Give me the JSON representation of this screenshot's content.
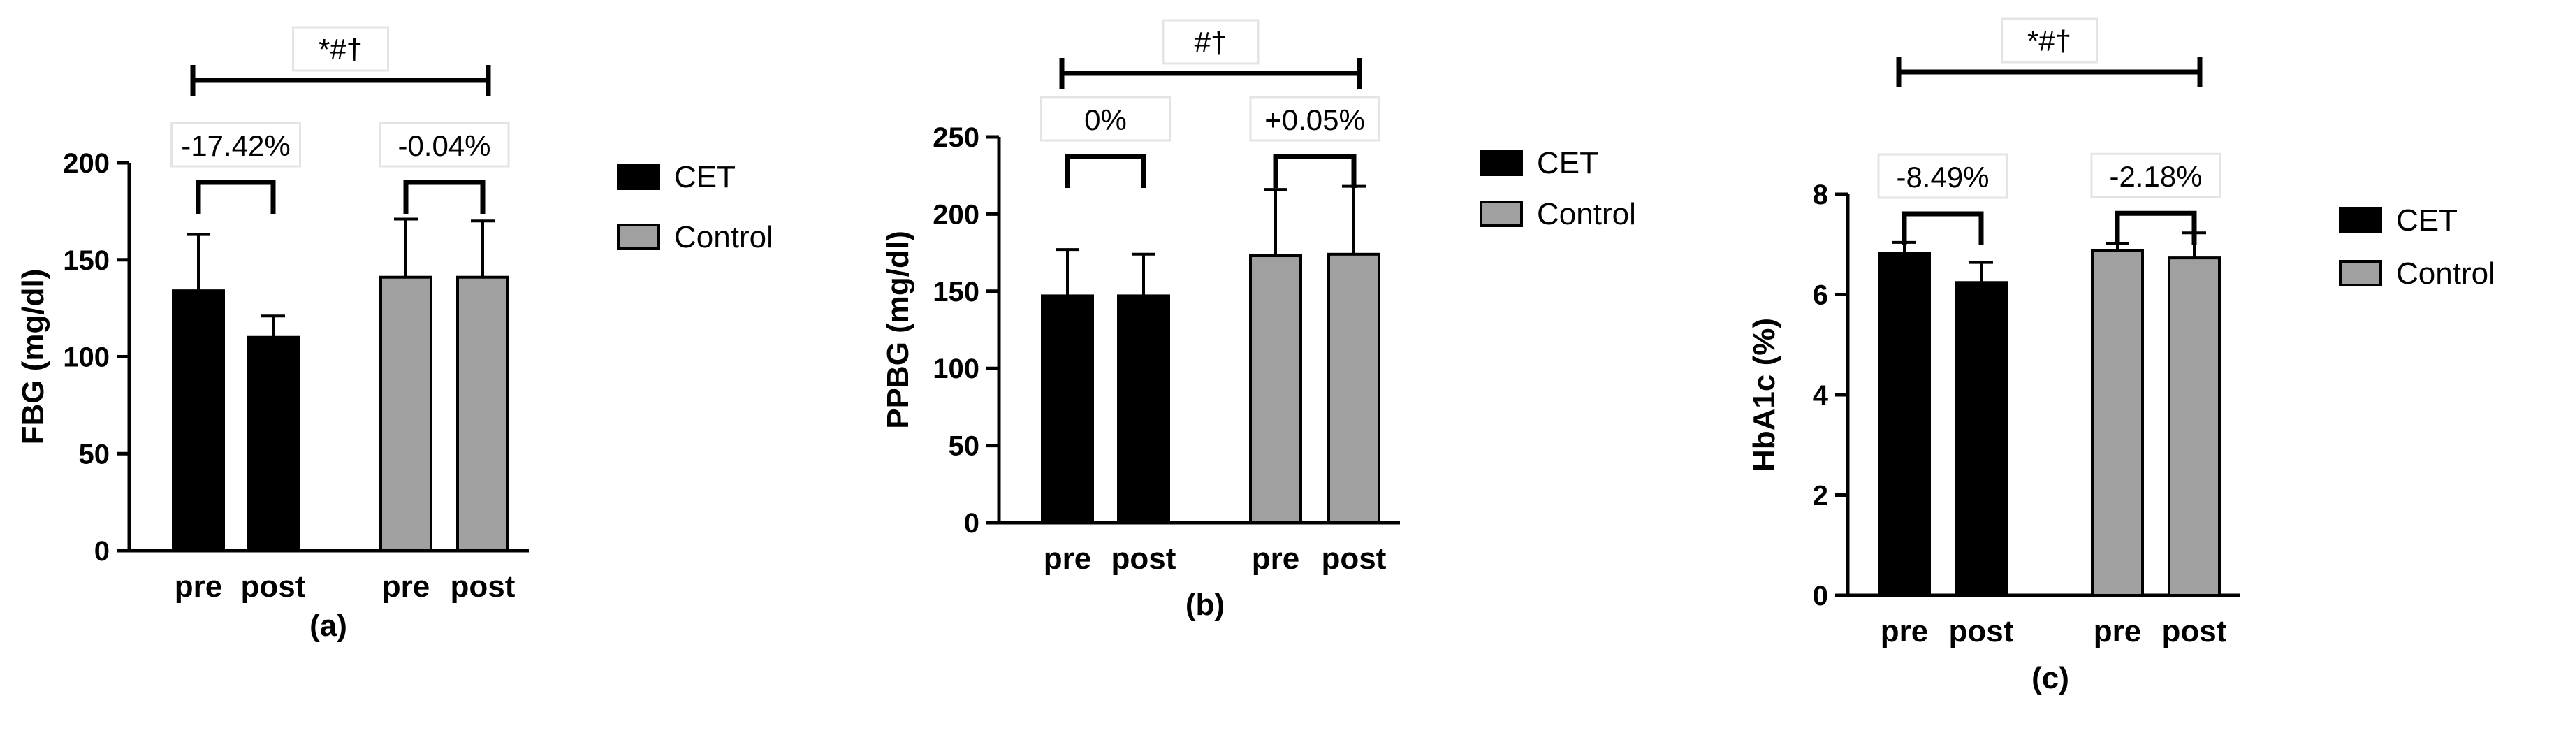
{
  "panels": [
    {
      "type": "bar",
      "ylabel": "FBG (mg/dl)",
      "caption": "(a)",
      "ylim": [
        0,
        200
      ],
      "yticks": [
        0,
        50,
        100,
        150,
        200
      ],
      "categories": [
        "pre",
        "post",
        "pre",
        "post"
      ],
      "series": [
        {
          "name": "CET",
          "values": [
            134,
            110
          ],
          "errors": [
            29,
            11
          ]
        },
        {
          "name": "Control",
          "values": [
            141,
            141
          ],
          "errors": [
            30,
            29
          ]
        }
      ],
      "group_annotations": [
        "-17.42%",
        "-0.04%"
      ],
      "top_annotation": "*#†"
    },
    {
      "type": "bar",
      "ylabel": "PPBG (mg/dl)",
      "caption": "(b)",
      "ylim": [
        0,
        250
      ],
      "yticks": [
        0,
        50,
        100,
        150,
        200,
        250
      ],
      "categories": [
        "pre",
        "post",
        "pre",
        "post"
      ],
      "series": [
        {
          "name": "CET",
          "values": [
            147,
            147
          ],
          "errors": [
            30,
            27
          ]
        },
        {
          "name": "Control",
          "values": [
            173,
            174
          ],
          "errors": [
            43,
            44
          ]
        }
      ],
      "group_annotations": [
        "0%",
        "+0.05%"
      ],
      "top_annotation": "#†"
    },
    {
      "type": "bar",
      "ylabel": "HbA1c (%)",
      "caption": "(c)",
      "ylim": [
        0,
        8
      ],
      "yticks": [
        0,
        2,
        4,
        6,
        8
      ],
      "categories": [
        "pre",
        "post",
        "pre",
        "post"
      ],
      "series": [
        {
          "name": "CET",
          "values": [
            6.82,
            6.24
          ],
          "errors": [
            0.22,
            0.4
          ]
        },
        {
          "name": "Control",
          "values": [
            6.88,
            6.73
          ],
          "errors": [
            0.14,
            0.5
          ]
        }
      ],
      "group_annotations": [
        "-8.49%",
        "-2.18%"
      ],
      "top_annotation": "*#†"
    }
  ],
  "legend": [
    {
      "name": "CET",
      "color": "#000000"
    },
    {
      "name": "Control",
      "color": "#a0a0a0"
    }
  ],
  "colors": {
    "CET": "#000000",
    "Control": "#a0a0a0",
    "axis": "#000000"
  }
}
